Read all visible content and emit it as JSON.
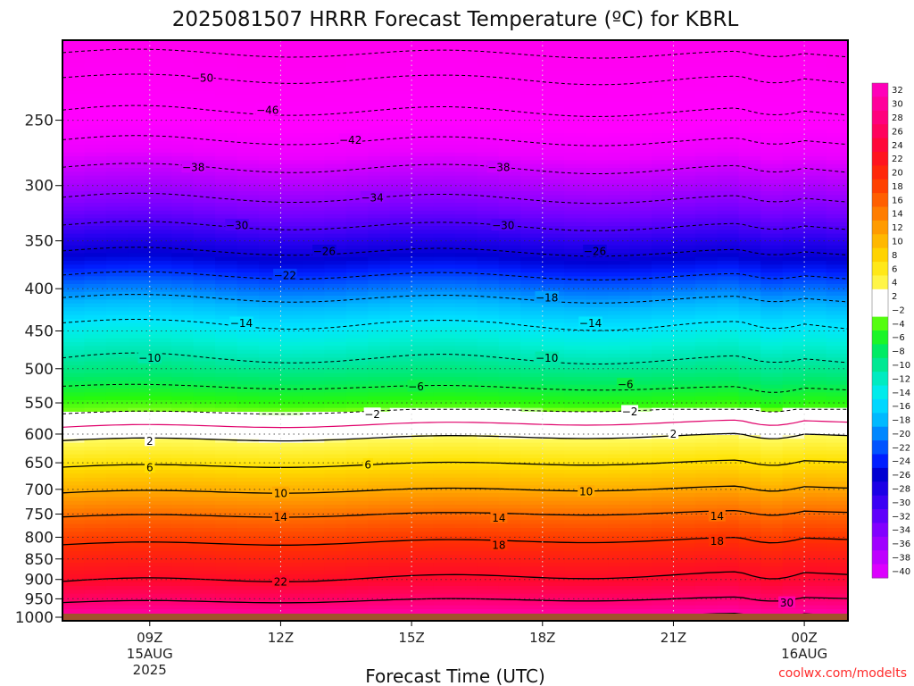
{
  "chart_data": {
    "type": "heatmap",
    "title": "2025081507 HRRR Forecast Temperature (ºC) for KBRL",
    "xlabel": "Forecast Time (UTC)",
    "ylabel": "",
    "credit": "coolwx.com/modelts",
    "x_ticks": [
      {
        "hour": 9,
        "label": "09Z",
        "sub1": "15AUG",
        "sub2": "2025"
      },
      {
        "hour": 12,
        "label": "12Z",
        "sub1": "",
        "sub2": ""
      },
      {
        "hour": 15,
        "label": "15Z",
        "sub1": "",
        "sub2": ""
      },
      {
        "hour": 18,
        "label": "18Z",
        "sub1": "",
        "sub2": ""
      },
      {
        "hour": 21,
        "label": "21Z",
        "sub1": "",
        "sub2": ""
      },
      {
        "hour": 24,
        "label": "00Z",
        "sub1": "16AUG",
        "sub2": ""
      }
    ],
    "xlim": [
      7.0,
      25.0
    ],
    "y_ticks": [
      "250",
      "300",
      "350",
      "400",
      "450",
      "500",
      "550",
      "600",
      "650",
      "700",
      "750",
      "800",
      "850",
      "900",
      "950",
      "1000"
    ],
    "ylim_hpa": [
      200,
      1010
    ],
    "y_scale": "log",
    "ground_top_hpa": 990,
    "colorbar": {
      "min": -40,
      "max": 32,
      "step": 2,
      "labels": [
        "32",
        "30",
        "28",
        "26",
        "24",
        "22",
        "20",
        "18",
        "16",
        "14",
        "12",
        "10",
        "8",
        "6",
        "4",
        "2",
        "−2",
        "−4",
        "−6",
        "−8",
        "−10",
        "−12",
        "−14",
        "−16",
        "−18",
        "−20",
        "−22",
        "−24",
        "−26",
        "−28",
        "−30",
        "−32",
        "−34",
        "−36",
        "−38",
        "−40"
      ]
    },
    "contour_labels": [
      {
        "t": -50,
        "x": 10.2,
        "p": 222,
        "text": "−50"
      },
      {
        "t": -46,
        "x": 11.7,
        "p": 243,
        "text": "−46"
      },
      {
        "t": -42,
        "x": 13.6,
        "p": 264,
        "text": "−42"
      },
      {
        "t": -38,
        "x": 10.0,
        "p": 285,
        "text": "−38"
      },
      {
        "t": -38,
        "x": 17.0,
        "p": 285,
        "text": "−38"
      },
      {
        "t": -34,
        "x": 14.1,
        "p": 310,
        "text": "−34"
      },
      {
        "t": -30,
        "x": 11.0,
        "p": 335,
        "text": "−30"
      },
      {
        "t": -30,
        "x": 17.1,
        "p": 335,
        "text": "−30"
      },
      {
        "t": -26,
        "x": 13.0,
        "p": 360,
        "text": "−26"
      },
      {
        "t": -26,
        "x": 19.2,
        "p": 360,
        "text": "−26"
      },
      {
        "t": -22,
        "x": 12.1,
        "p": 385,
        "text": "−22"
      },
      {
        "t": -18,
        "x": 18.1,
        "p": 410,
        "text": "−18"
      },
      {
        "t": -14,
        "x": 11.1,
        "p": 440,
        "text": "−14"
      },
      {
        "t": -14,
        "x": 19.1,
        "p": 440,
        "text": "−14"
      },
      {
        "t": -10,
        "x": 9.0,
        "p": 485,
        "text": "−10"
      },
      {
        "t": -10,
        "x": 18.1,
        "p": 485,
        "text": "−10"
      },
      {
        "t": -6,
        "x": 15.1,
        "p": 525,
        "text": "−6"
      },
      {
        "t": -6,
        "x": 19.9,
        "p": 522,
        "text": "−6"
      },
      {
        "t": -2,
        "x": 14.1,
        "p": 567,
        "text": "−2"
      },
      {
        "t": -2,
        "x": 20.0,
        "p": 563,
        "text": "−2"
      },
      {
        "t": 2,
        "x": 9.0,
        "p": 611,
        "text": "2"
      },
      {
        "t": 2,
        "x": 21.0,
        "p": 599,
        "text": "2"
      },
      {
        "t": 6,
        "x": 9.0,
        "p": 658,
        "text": "6"
      },
      {
        "t": 6,
        "x": 14.0,
        "p": 653,
        "text": "6"
      },
      {
        "t": 10,
        "x": 12.0,
        "p": 707,
        "text": "10"
      },
      {
        "t": 10,
        "x": 19.0,
        "p": 704,
        "text": "10"
      },
      {
        "t": 14,
        "x": 12.0,
        "p": 756,
        "text": "14"
      },
      {
        "t": 14,
        "x": 17.0,
        "p": 757,
        "text": "14"
      },
      {
        "t": 14,
        "x": 22.0,
        "p": 754,
        "text": "14"
      },
      {
        "t": 18,
        "x": 17.0,
        "p": 817,
        "text": "18"
      },
      {
        "t": 18,
        "x": 22.0,
        "p": 808,
        "text": "18"
      },
      {
        "t": 22,
        "x": 12.0,
        "p": 905,
        "text": "22"
      },
      {
        "t": 30,
        "x": 23.6,
        "p": 960,
        "text": "30"
      }
    ]
  }
}
